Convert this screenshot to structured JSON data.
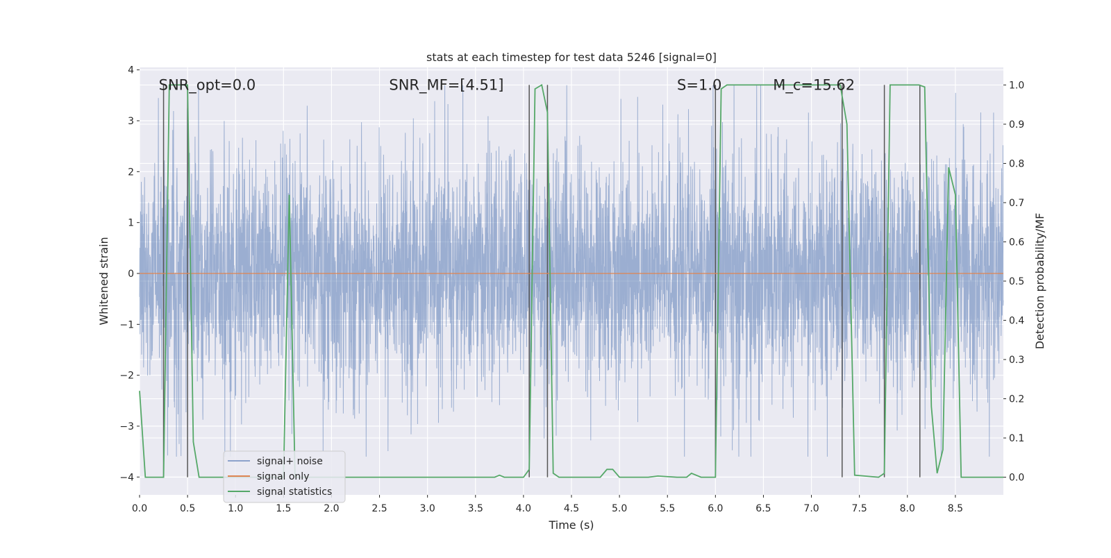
{
  "chart_data": {
    "type": "line",
    "title": "stats at each timestep for test data 5246 [signal=0]",
    "xlabel": "Time (s)",
    "ylabel_left": "Whitened strain",
    "ylabel_right": "Detection probability/MF",
    "xlim": [
      0.0,
      9.0
    ],
    "ylim_left": [
      -4.35,
      4.05
    ],
    "ylim_right": [
      -0.045,
      1.045
    ],
    "x_ticks": [
      0.0,
      0.5,
      1.0,
      1.5,
      2.0,
      2.5,
      3.0,
      3.5,
      4.0,
      4.5,
      5.0,
      5.5,
      6.0,
      6.5,
      7.0,
      7.5,
      8.0,
      8.5
    ],
    "x_tick_labels": [
      "0.0",
      "0.5",
      "1.0",
      "1.5",
      "2.0",
      "2.5",
      "3.0",
      "3.5",
      "4.0",
      "4.5",
      "5.0",
      "5.5",
      "6.0",
      "6.5",
      "7.0",
      "7.5",
      "8.0",
      "8.5"
    ],
    "y_left_ticks": [
      4,
      3,
      2,
      1,
      0,
      -1,
      -2,
      -3,
      -4
    ],
    "y_left_tick_labels": [
      "4",
      "3",
      "2",
      "1",
      "0",
      "−1",
      "−2",
      "−3",
      "−4"
    ],
    "y_right_ticks": [
      1.0,
      0.9,
      0.8,
      0.7,
      0.6,
      0.5,
      0.4,
      0.3,
      0.2,
      0.1,
      0.0
    ],
    "y_right_tick_labels": [
      "1.0",
      "0.9",
      "0.8",
      "0.7",
      "0.6",
      "0.5",
      "0.4",
      "0.3",
      "0.2",
      "0.1",
      "0.0"
    ],
    "grid": true,
    "legend_position": "lower-left",
    "annotations": [
      {
        "text": "SNR_opt=0.0",
        "x": 0.2,
        "y": 3.7
      },
      {
        "text": "SNR_MF=[4.51]",
        "x": 2.6,
        "y": 3.7
      },
      {
        "text": "S=1.0",
        "x": 5.6,
        "y": 3.7
      },
      {
        "text": "M_c=15.62",
        "x": 6.6,
        "y": 3.7
      }
    ],
    "series": [
      {
        "name": "signal+ noise",
        "color": "#4c72b0",
        "axis": "left",
        "kind": "noise",
        "envelope": [
          -2.2,
          2.2
        ],
        "peak_range": [
          -3.6,
          3.7
        ]
      },
      {
        "name": "signal only",
        "color": "#dd8452",
        "axis": "left",
        "x": [
          0.0,
          9.0
        ],
        "y": [
          0.0,
          0.0
        ]
      },
      {
        "name": "signal statistics",
        "color": "#55a868",
        "axis": "right",
        "x": [
          0.0,
          0.06,
          0.12,
          0.25,
          0.31,
          0.37,
          0.43,
          0.5,
          0.56,
          0.62,
          1.0,
          1.3,
          1.5,
          1.56,
          1.62,
          1.68,
          2.0,
          3.0,
          3.4,
          3.7,
          3.75,
          3.8,
          4.0,
          4.06,
          4.12,
          4.19,
          4.25,
          4.31,
          4.37,
          4.45,
          4.8,
          4.87,
          4.93,
          5.0,
          5.3,
          5.4,
          5.6,
          5.7,
          5.75,
          5.85,
          6.0,
          6.06,
          6.12,
          6.2,
          7.3,
          7.37,
          7.45,
          7.7,
          7.76,
          7.82,
          7.88,
          8.12,
          8.18,
          8.25,
          8.31,
          8.37,
          8.43,
          8.5,
          8.56,
          8.8,
          9.0
        ],
        "y": [
          0.22,
          0.0,
          0.0,
          0.0,
          1.0,
          1.0,
          1.0,
          1.0,
          0.09,
          0.0,
          0.0,
          0.0,
          0.0,
          0.72,
          0.0,
          0.0,
          0.0,
          0.0,
          0.0,
          0.0,
          0.005,
          0.0,
          0.0,
          0.02,
          0.99,
          1.0,
          0.93,
          0.01,
          0.0,
          0.0,
          0.0,
          0.02,
          0.02,
          0.0,
          0.0,
          0.003,
          0.0,
          0.0,
          0.01,
          0.0,
          0.0,
          0.99,
          1.0,
          1.0,
          1.0,
          0.9,
          0.005,
          0.0,
          0.01,
          1.0,
          1.0,
          1.0,
          0.995,
          0.18,
          0.01,
          0.07,
          0.79,
          0.72,
          0.0,
          0.0,
          0.0
        ]
      }
    ],
    "detection_markers": {
      "color": "#555555",
      "times": [
        0.25,
        0.5,
        4.06,
        4.25,
        6.0,
        7.32,
        7.76,
        8.13
      ]
    }
  }
}
